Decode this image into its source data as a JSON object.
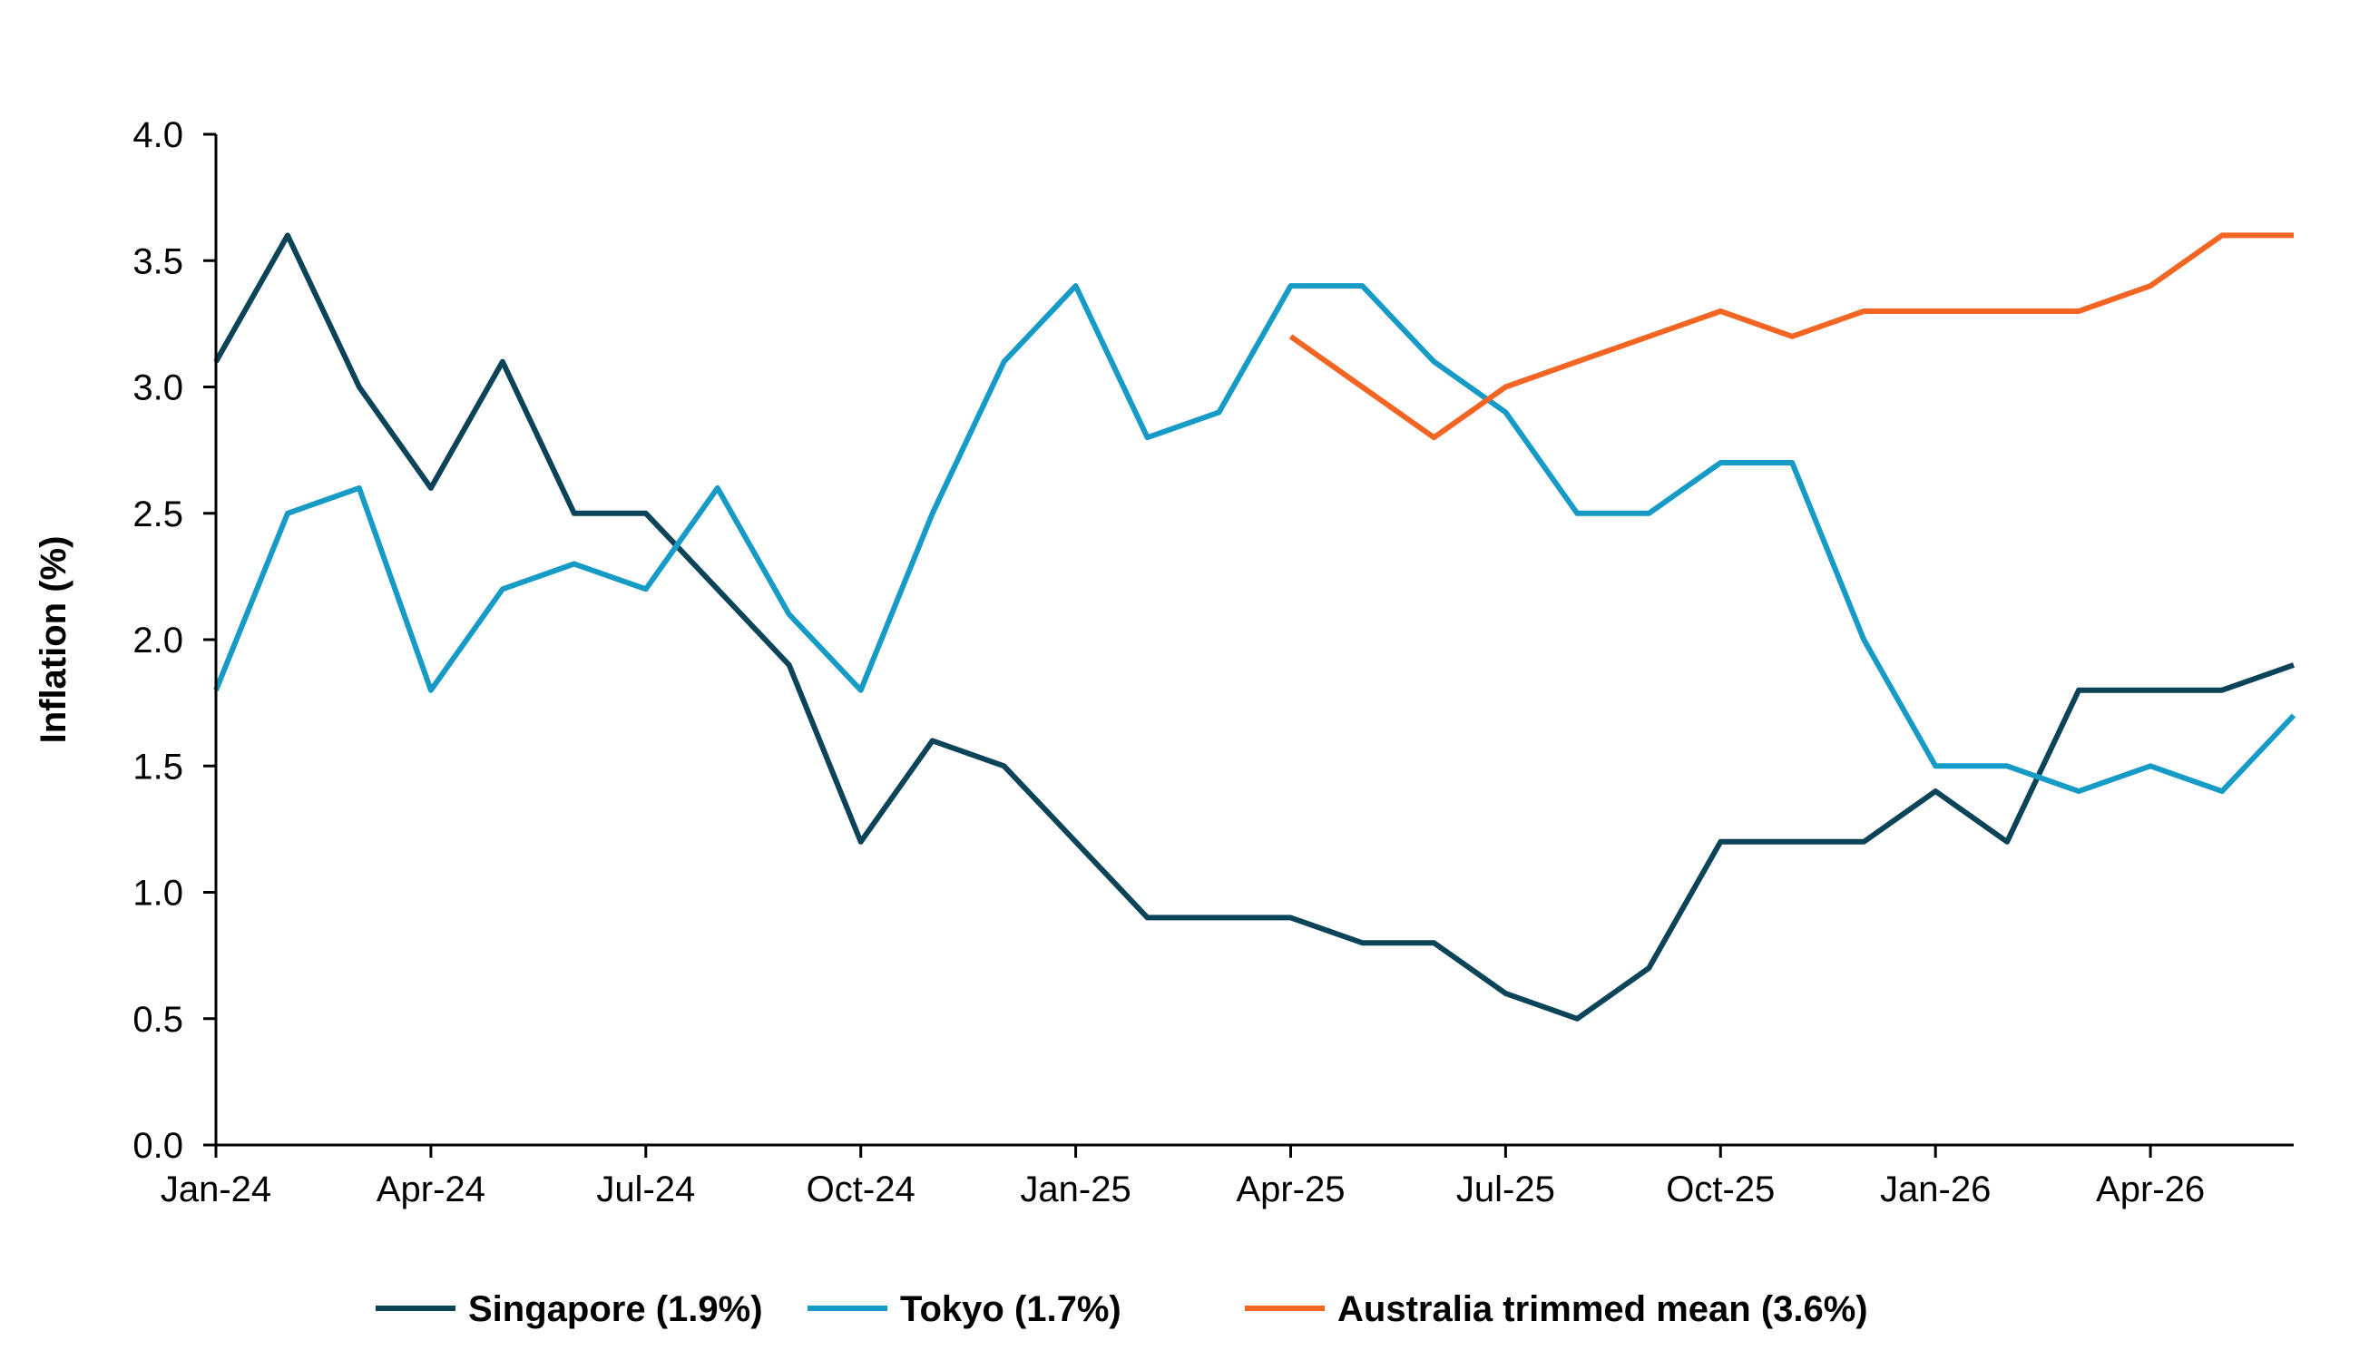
{
  "chart_data": {
    "type": "line",
    "title": "",
    "xlabel": "",
    "ylabel": "Inflation (%)",
    "ylim": [
      0,
      4
    ],
    "yticks": [
      "0.0",
      "0.5",
      "1.0",
      "1.5",
      "2.0",
      "2.5",
      "3.0",
      "3.5",
      "4.0"
    ],
    "x": [
      "Jan-24",
      "Feb-24",
      "Mar-24",
      "Apr-24",
      "May-24",
      "Jun-24",
      "Jul-24",
      "Aug-24",
      "Sep-24",
      "Oct-24",
      "Nov-24",
      "Dec-24",
      "Jan-25",
      "Feb-25",
      "Mar-25",
      "Apr-25",
      "May-25",
      "Jun-25",
      "Jul-25",
      "Aug-25",
      "Sep-25",
      "Oct-25",
      "Nov-25",
      "Dec-25",
      "Jan-26",
      "Feb-26",
      "Mar-26",
      "Apr-26",
      "May-26",
      "Jun-26"
    ],
    "xtick_labels": [
      "Jan-24",
      "Apr-24",
      "Jul-24",
      "Oct-24",
      "Jan-25",
      "Apr-25",
      "Jul-25",
      "Oct-25",
      "Jan-26",
      "Apr-26"
    ],
    "grid": false,
    "legend_position": "bottom",
    "series": [
      {
        "name": "Singapore (1.9%)",
        "color": "#0b4459",
        "values": [
          3.1,
          3.6,
          3.0,
          2.6,
          3.1,
          2.5,
          2.5,
          2.2,
          1.9,
          1.2,
          1.6,
          1.5,
          1.2,
          0.9,
          0.9,
          0.9,
          0.8,
          0.8,
          0.6,
          0.5,
          0.7,
          1.2,
          1.2,
          1.2,
          1.4,
          1.2,
          1.8,
          1.8,
          1.8,
          1.9
        ]
      },
      {
        "name": "Tokyo (1.7%)",
        "color": "#169ac6",
        "values": [
          1.8,
          2.5,
          2.6,
          1.8,
          2.2,
          2.3,
          2.2,
          2.6,
          2.1,
          1.8,
          2.5,
          3.1,
          3.4,
          2.8,
          2.9,
          3.4,
          3.4,
          3.1,
          2.9,
          2.5,
          2.5,
          2.7,
          2.7,
          2.0,
          1.5,
          1.5,
          1.4,
          1.5,
          1.4,
          1.7
        ]
      },
      {
        "name": "Australia trimmed mean (3.6%)",
        "color": "#f26522",
        "values": [
          null,
          null,
          null,
          null,
          null,
          null,
          null,
          null,
          null,
          null,
          null,
          null,
          null,
          null,
          null,
          3.2,
          3.0,
          2.8,
          3.0,
          3.1,
          3.2,
          3.3,
          3.2,
          3.3,
          3.3,
          3.3,
          3.3,
          3.4,
          3.6,
          3.6
        ]
      }
    ]
  }
}
